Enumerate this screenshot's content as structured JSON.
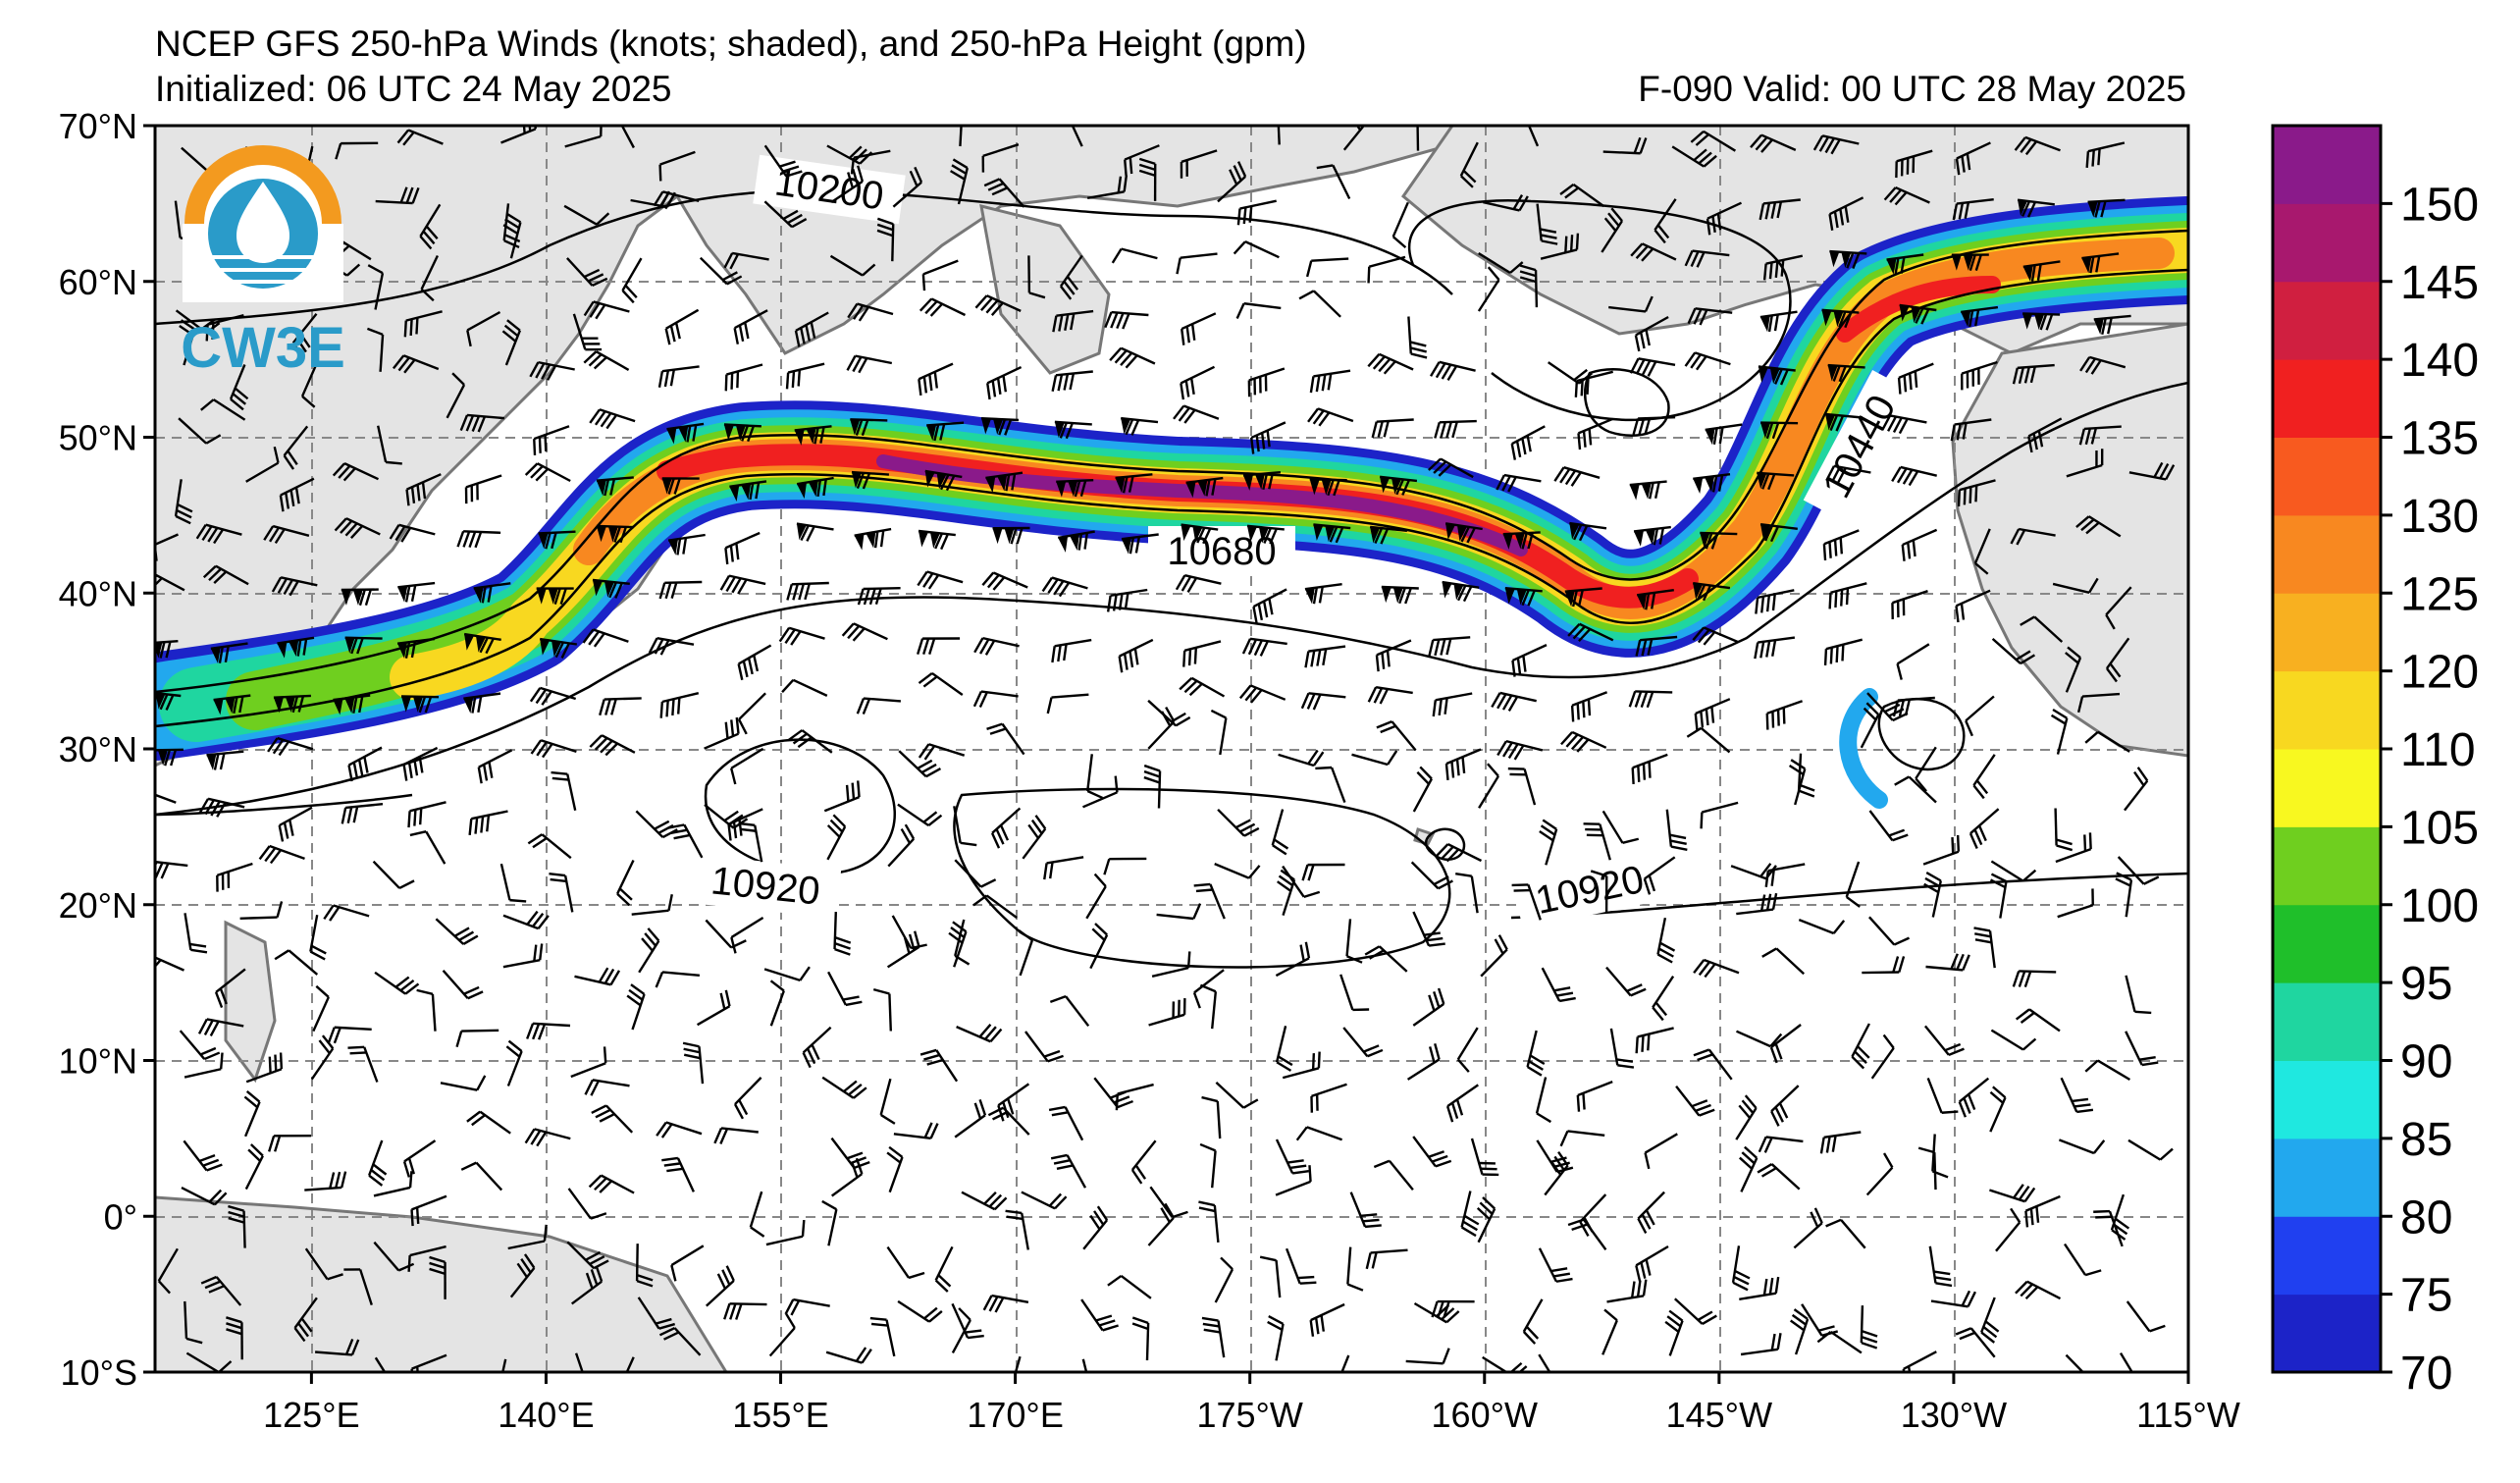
{
  "title_line1": "NCEP GFS 250-hPa Winds (knots; shaded), and 250-hPa Height (gpm)",
  "title_line2_left": "Initialized: 06 UTC 24 May 2025",
  "title_line2_right": "F-090  Valid: 00 UTC 28 May 2025",
  "logo": {
    "text": "CW3E",
    "icon": "cw3e-logo-icon"
  },
  "map": {
    "lon_range": [
      115,
      245
    ],
    "lat_range": [
      -10,
      70
    ],
    "lon_ticks": [
      {
        "value": 125,
        "label": "125°E"
      },
      {
        "value": 140,
        "label": "140°E"
      },
      {
        "value": 155,
        "label": "155°E"
      },
      {
        "value": 170,
        "label": "170°E"
      },
      {
        "value": 185,
        "label": "175°W"
      },
      {
        "value": 200,
        "label": "160°W"
      },
      {
        "value": 215,
        "label": "145°W"
      },
      {
        "value": 230,
        "label": "130°W"
      },
      {
        "value": 245,
        "label": "115°W"
      }
    ],
    "lat_ticks": [
      {
        "value": 70,
        "label": "70°N"
      },
      {
        "value": 60,
        "label": "60°N"
      },
      {
        "value": 50,
        "label": "50°N"
      },
      {
        "value": 40,
        "label": "40°N"
      },
      {
        "value": 30,
        "label": "30°N"
      },
      {
        "value": 20,
        "label": "20°N"
      },
      {
        "value": 10,
        "label": "10°N"
      },
      {
        "value": 0,
        "label": "0°"
      },
      {
        "value": -10,
        "label": "10°S"
      }
    ],
    "grid": true,
    "contour_labels": [
      {
        "text": "10200",
        "lon": 157,
        "lat": 66,
        "angle": 8
      },
      {
        "text": "10680",
        "lon": 182,
        "lat": 42.4,
        "angle": 0
      },
      {
        "text": "10440",
        "lon": 226,
        "lat": 50,
        "angle": -62
      },
      {
        "text": "10920",
        "lon": 153,
        "lat": 21.6,
        "angle": 6
      },
      {
        "text": "10920",
        "lon": 208,
        "lat": 21.4,
        "angle": -12
      }
    ]
  },
  "colorbar": {
    "unit": "knots",
    "levels": [
      70,
      75,
      80,
      85,
      90,
      95,
      100,
      105,
      110,
      120,
      125,
      130,
      135,
      140,
      145,
      150,
      155
    ],
    "labels": [
      "70",
      "75",
      "80",
      "85",
      "90",
      "95",
      "100",
      "105",
      "110",
      "120",
      "125",
      "130",
      "135",
      "140",
      "145",
      "150"
    ],
    "colors": [
      "#1c23c8",
      "#2040f0",
      "#22a8ee",
      "#1fe8e0",
      "#1fd6a0",
      "#1fbf2a",
      "#6fcf1f",
      "#f8f820",
      "#f8d820",
      "#f8b020",
      "#f88820",
      "#f85a1f",
      "#f02020",
      "#d01f40",
      "#a8186e",
      "#8a1a8a"
    ]
  }
}
